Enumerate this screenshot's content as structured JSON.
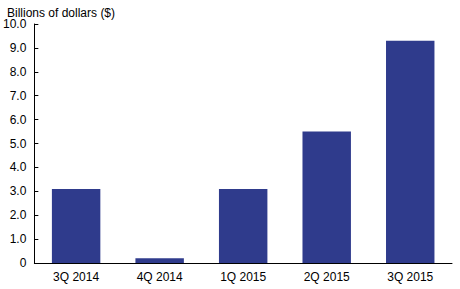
{
  "chart_data": {
    "type": "bar",
    "y_label": "Billions of dollars ($)",
    "categories": [
      "3Q 2014",
      "4Q 2014",
      "1Q 2015",
      "2Q 2015",
      "3Q 2015"
    ],
    "values": [
      3.1,
      0.2,
      3.1,
      5.5,
      9.3
    ],
    "color": "#2f3b8c",
    "ylim": [
      0,
      10
    ],
    "yticks": [
      0,
      {
        "value": 1,
        "label": "1.0"
      },
      {
        "value": 2,
        "label": "2.0"
      },
      {
        "value": 3,
        "label": "3.0"
      },
      {
        "value": 4,
        "label": "4.0"
      },
      {
        "value": 5,
        "label": "5.0"
      },
      {
        "value": 6,
        "label": "6.0"
      },
      {
        "value": 7,
        "label": "7.0"
      },
      {
        "value": 8,
        "label": "8.0"
      },
      {
        "value": 9,
        "label": "9.0"
      },
      {
        "value": 10,
        "label": "10.0"
      }
    ],
    "grid": false
  }
}
